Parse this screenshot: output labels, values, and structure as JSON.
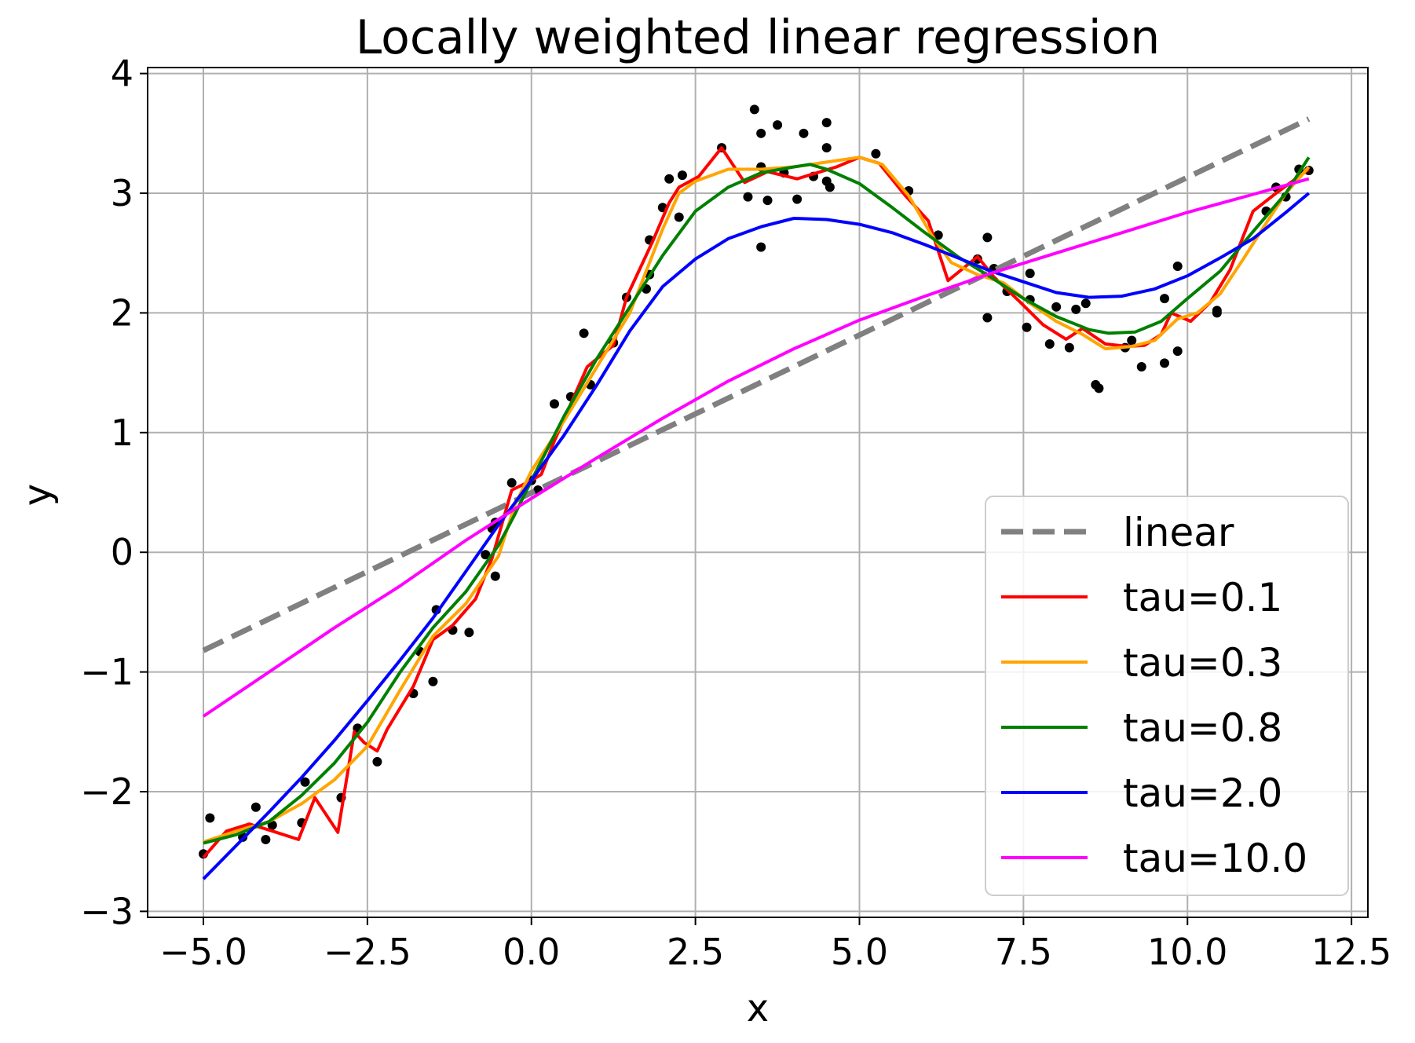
{
  "chart_data": {
    "type": "line",
    "title": "Locally weighted linear regression",
    "xlabel": "x",
    "ylabel": "y",
    "xlim": [
      -5.85,
      12.75
    ],
    "ylim": [
      -3.05,
      4.05
    ],
    "grid": true,
    "legend_position": "lower-right",
    "x_ticks": [
      -5.0,
      -2.5,
      0.0,
      2.5,
      5.0,
      7.5,
      10.0,
      12.5
    ],
    "x_tick_labels": [
      "−5.0",
      "−2.5",
      "0.0",
      "2.5",
      "5.0",
      "7.5",
      "10.0",
      "12.5"
    ],
    "y_ticks": [
      -3,
      -2,
      -1,
      0,
      1,
      2,
      3,
      4
    ],
    "y_tick_labels": [
      "−3",
      "−2",
      "−1",
      "0",
      "1",
      "2",
      "3",
      "4"
    ],
    "scatter": {
      "color": "#000000",
      "points": [
        [
          -5.0,
          -2.52
        ],
        [
          -4.9,
          -2.22
        ],
        [
          -4.4,
          -2.38
        ],
        [
          -4.2,
          -2.13
        ],
        [
          -4.05,
          -2.4
        ],
        [
          -3.95,
          -2.28
        ],
        [
          -3.5,
          -2.26
        ],
        [
          -3.45,
          -1.92
        ],
        [
          -2.9,
          -2.05
        ],
        [
          -2.65,
          -1.47
        ],
        [
          -2.35,
          -1.75
        ],
        [
          -1.8,
          -1.18
        ],
        [
          -1.7,
          -0.83
        ],
        [
          -1.5,
          -1.08
        ],
        [
          -1.45,
          -0.48
        ],
        [
          -1.2,
          -0.65
        ],
        [
          -0.95,
          -0.67
        ],
        [
          -0.7,
          -0.02
        ],
        [
          -0.6,
          0.2
        ],
        [
          -0.55,
          0.25
        ],
        [
          -0.55,
          -0.2
        ],
        [
          -0.3,
          0.58
        ],
        [
          0.0,
          0.6
        ],
        [
          0.1,
          0.52
        ],
        [
          0.35,
          1.24
        ],
        [
          0.6,
          1.3
        ],
        [
          0.8,
          1.83
        ],
        [
          0.9,
          1.4
        ],
        [
          1.25,
          1.75
        ],
        [
          1.45,
          2.13
        ],
        [
          1.75,
          2.2
        ],
        [
          1.8,
          2.32
        ],
        [
          1.8,
          2.61
        ],
        [
          2.0,
          2.88
        ],
        [
          2.1,
          3.12
        ],
        [
          2.25,
          2.8
        ],
        [
          2.3,
          3.15
        ],
        [
          2.9,
          3.38
        ],
        [
          3.3,
          2.97
        ],
        [
          3.4,
          3.7
        ],
        [
          3.5,
          3.22
        ],
        [
          3.5,
          3.5
        ],
        [
          3.5,
          2.55
        ],
        [
          3.6,
          2.94
        ],
        [
          3.75,
          3.57
        ],
        [
          3.85,
          3.17
        ],
        [
          4.05,
          2.95
        ],
        [
          4.15,
          3.5
        ],
        [
          4.3,
          3.14
        ],
        [
          4.5,
          3.59
        ],
        [
          4.5,
          3.38
        ],
        [
          4.5,
          3.1
        ],
        [
          4.55,
          3.05
        ],
        [
          5.25,
          3.33
        ],
        [
          5.75,
          3.02
        ],
        [
          6.2,
          2.65
        ],
        [
          6.8,
          2.45
        ],
        [
          6.95,
          2.63
        ],
        [
          6.95,
          1.96
        ],
        [
          7.05,
          2.37
        ],
        [
          7.25,
          2.18
        ],
        [
          7.55,
          1.88
        ],
        [
          7.6,
          2.33
        ],
        [
          7.6,
          2.11
        ],
        [
          7.9,
          1.74
        ],
        [
          8.0,
          2.05
        ],
        [
          8.2,
          1.71
        ],
        [
          8.3,
          2.03
        ],
        [
          8.45,
          2.08
        ],
        [
          8.6,
          1.4
        ],
        [
          8.65,
          1.37
        ],
        [
          9.05,
          1.71
        ],
        [
          9.15,
          1.77
        ],
        [
          9.3,
          1.55
        ],
        [
          9.65,
          1.58
        ],
        [
          9.65,
          2.12
        ],
        [
          9.85,
          2.39
        ],
        [
          9.85,
          1.68
        ],
        [
          10.45,
          2.02
        ],
        [
          10.45,
          2.0
        ],
        [
          11.2,
          2.85
        ],
        [
          11.35,
          3.05
        ],
        [
          11.5,
          2.97
        ],
        [
          11.7,
          3.2
        ],
        [
          11.85,
          3.19
        ]
      ]
    },
    "series": [
      {
        "name": "linear",
        "color": "#808080",
        "dashed": true,
        "x": [
          -5.0,
          11.85
        ],
        "y": [
          -0.82,
          3.62
        ]
      },
      {
        "name": "tau=0.1",
        "color": "#ff0000",
        "dashed": false,
        "x": [
          -5.0,
          -4.65,
          -4.3,
          -4.0,
          -3.55,
          -3.3,
          -2.95,
          -2.7,
          -2.55,
          -2.35,
          -2.2,
          -1.8,
          -1.5,
          -1.2,
          -0.85,
          -0.6,
          -0.3,
          0.0,
          0.15,
          0.35,
          0.85,
          1.25,
          1.45,
          1.85,
          2.1,
          2.25,
          2.55,
          2.9,
          3.25,
          3.6,
          3.9,
          4.05,
          4.35,
          4.65,
          5.0,
          5.3,
          5.7,
          6.05,
          6.35,
          6.8,
          7.05,
          7.45,
          7.8,
          8.15,
          8.4,
          8.75,
          9.1,
          9.35,
          9.6,
          9.75,
          10.05,
          10.35,
          10.65,
          11.0,
          11.35,
          11.85
        ],
        "y": [
          -2.55,
          -2.33,
          -2.27,
          -2.32,
          -2.4,
          -2.05,
          -2.34,
          -1.5,
          -1.59,
          -1.66,
          -1.48,
          -1.12,
          -0.73,
          -0.61,
          -0.39,
          -0.05,
          0.52,
          0.6,
          0.65,
          0.93,
          1.55,
          1.73,
          2.13,
          2.6,
          2.92,
          3.05,
          3.14,
          3.38,
          3.09,
          3.18,
          3.14,
          3.12,
          3.17,
          3.22,
          3.3,
          3.25,
          2.98,
          2.77,
          2.27,
          2.47,
          2.3,
          2.09,
          1.9,
          1.78,
          1.87,
          1.74,
          1.72,
          1.73,
          1.82,
          2.0,
          1.93,
          2.09,
          2.36,
          2.85,
          3.0,
          3.2
        ]
      },
      {
        "name": "tau=0.3",
        "color": "#ffa500",
        "dashed": false,
        "x": [
          -5.0,
          -4.5,
          -4.0,
          -3.5,
          -3.0,
          -2.5,
          -2.0,
          -1.5,
          -1.0,
          -0.5,
          -0.25,
          0.0,
          0.5,
          1.0,
          1.5,
          2.0,
          2.25,
          2.5,
          3.0,
          3.5,
          4.0,
          4.5,
          5.0,
          5.35,
          5.75,
          6.1,
          6.4,
          6.8,
          7.2,
          7.6,
          8.0,
          8.4,
          8.75,
          9.15,
          9.5,
          9.85,
          10.15,
          10.5,
          10.85,
          11.2,
          11.5,
          11.85
        ],
        "y": [
          -2.42,
          -2.33,
          -2.25,
          -2.1,
          -1.9,
          -1.62,
          -1.15,
          -0.7,
          -0.43,
          -0.03,
          0.4,
          0.68,
          1.1,
          1.55,
          2.0,
          2.7,
          3.0,
          3.1,
          3.2,
          3.2,
          3.22,
          3.26,
          3.3,
          3.24,
          2.98,
          2.65,
          2.42,
          2.32,
          2.25,
          2.08,
          1.93,
          1.82,
          1.7,
          1.72,
          1.77,
          1.95,
          2.0,
          2.16,
          2.45,
          2.75,
          3.0,
          3.22
        ]
      },
      {
        "name": "tau=0.8",
        "color": "#008000",
        "dashed": false,
        "x": [
          -5.0,
          -4.5,
          -4.0,
          -3.5,
          -3.0,
          -2.5,
          -2.0,
          -1.5,
          -1.0,
          -0.5,
          -0.25,
          0.0,
          0.5,
          1.0,
          1.5,
          2.0,
          2.5,
          3.0,
          3.5,
          4.0,
          4.25,
          4.5,
          5.0,
          5.5,
          6.0,
          6.5,
          7.0,
          7.5,
          8.0,
          8.5,
          8.8,
          9.2,
          9.6,
          10.0,
          10.5,
          11.0,
          11.5,
          11.85
        ],
        "y": [
          -2.43,
          -2.36,
          -2.25,
          -2.03,
          -1.76,
          -1.42,
          -1.0,
          -0.63,
          -0.33,
          0.06,
          0.32,
          0.6,
          1.14,
          1.62,
          2.05,
          2.48,
          2.85,
          3.05,
          3.17,
          3.22,
          3.24,
          3.2,
          3.08,
          2.88,
          2.67,
          2.47,
          2.3,
          2.12,
          1.97,
          1.86,
          1.83,
          1.84,
          1.93,
          2.12,
          2.35,
          2.68,
          3.0,
          3.3
        ]
      },
      {
        "name": "tau=2.0",
        "color": "#0000ff",
        "dashed": false,
        "x": [
          -5.0,
          -4.5,
          -4.0,
          -3.5,
          -3.0,
          -2.5,
          -2.0,
          -1.5,
          -1.0,
          -0.5,
          0.0,
          0.5,
          1.0,
          1.5,
          2.0,
          2.5,
          3.0,
          3.5,
          4.0,
          4.5,
          5.0,
          5.5,
          6.0,
          6.5,
          7.0,
          7.5,
          8.0,
          8.5,
          9.0,
          9.5,
          10.0,
          10.5,
          11.0,
          11.5,
          11.85
        ],
        "y": [
          -2.73,
          -2.45,
          -2.17,
          -1.88,
          -1.57,
          -1.24,
          -0.9,
          -0.55,
          -0.16,
          0.23,
          0.6,
          0.98,
          1.4,
          1.85,
          2.22,
          2.45,
          2.62,
          2.72,
          2.79,
          2.78,
          2.74,
          2.67,
          2.57,
          2.46,
          2.35,
          2.26,
          2.17,
          2.13,
          2.14,
          2.2,
          2.31,
          2.46,
          2.62,
          2.84,
          3.0
        ]
      },
      {
        "name": "tau=10.0",
        "color": "#ff00ff",
        "dashed": false,
        "x": [
          -5.0,
          -4.0,
          -3.0,
          -2.0,
          -1.0,
          0.0,
          1.0,
          2.0,
          3.0,
          4.0,
          5.0,
          6.0,
          7.0,
          8.0,
          9.0,
          10.0,
          11.0,
          11.85
        ],
        "y": [
          -1.37,
          -1.0,
          -0.63,
          -0.28,
          0.1,
          0.45,
          0.79,
          1.12,
          1.43,
          1.7,
          1.94,
          2.14,
          2.33,
          2.5,
          2.67,
          2.84,
          2.99,
          3.12
        ]
      }
    ]
  }
}
